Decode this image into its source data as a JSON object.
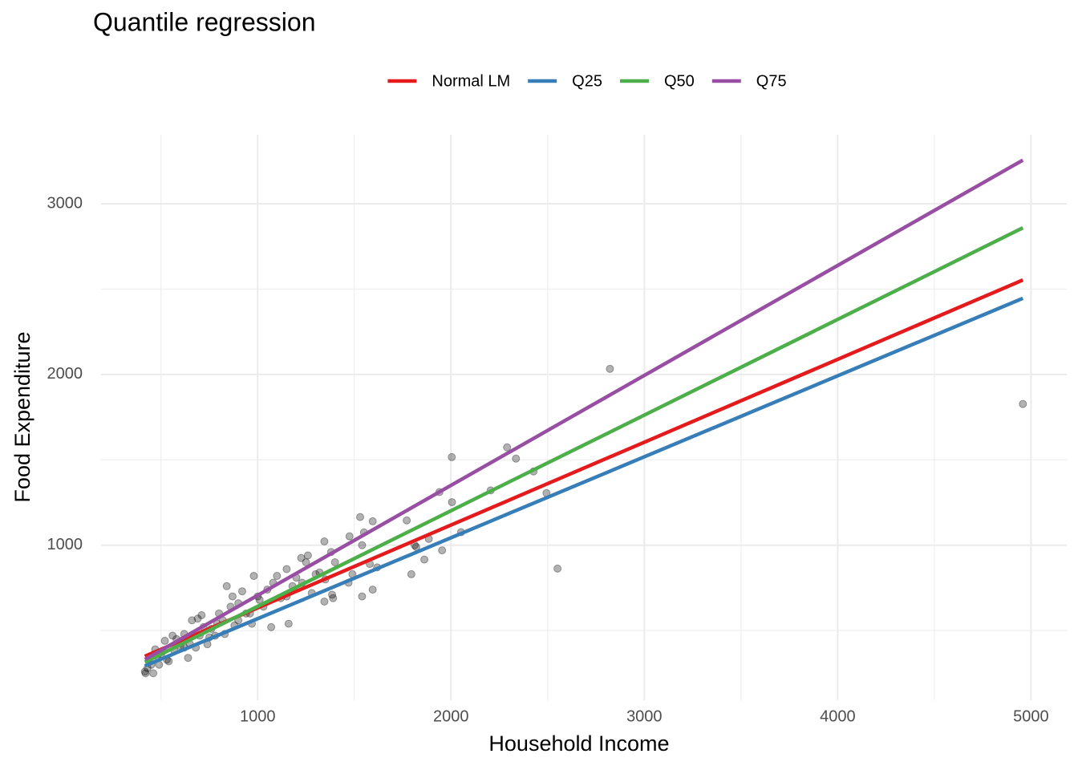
{
  "chart_data": {
    "type": "scatter",
    "title": "Quantile regression",
    "x_label": "Household Income",
    "y_label": "Food Expenditure",
    "x": [
      2822,
      4958,
      2551,
      2004,
      2290,
      2336,
      2427,
      2494,
      1940,
      2005,
      2205,
      2052,
      1954,
      1885,
      1862,
      1795,
      1812,
      1820,
      1771,
      1595,
      1530,
      1550,
      1475,
      1540,
      1595,
      1540,
      1618,
      1580,
      1490,
      1470,
      1400,
      1380,
      1345,
      1390,
      1385,
      1345,
      1350,
      1300,
      1260,
      1225,
      1250,
      1200,
      1150,
      1100,
      1160,
      1070,
      1150,
      1080,
      1050,
      980,
      1000,
      960,
      920,
      900,
      880,
      840,
      860,
      820,
      800,
      780,
      760,
      740,
      710,
      690,
      700,
      680,
      650,
      640,
      620,
      600,
      570,
      560,
      540,
      520,
      500,
      490,
      470,
      460,
      440,
      430,
      417,
      420,
      450,
      480,
      510,
      530,
      580,
      620,
      660,
      720,
      750,
      790,
      830,
      870,
      900,
      940,
      970,
      1010,
      1030,
      1120,
      1180,
      1230,
      1280,
      1320
    ],
    "values": [
      2033,
      1827,
      863,
      1516,
      1573,
      1507,
      1432,
      1305,
      1311,
      1252,
      1321,
      1076,
      970,
      1037,
      916,
      830,
      1000,
      990,
      1145,
      1140,
      1165,
      1075,
      1052,
      1000,
      740,
      700,
      870,
      890,
      830,
      780,
      900,
      960,
      1022,
      690,
      710,
      670,
      800,
      830,
      940,
      925,
      900,
      810,
      860,
      820,
      540,
      520,
      700,
      780,
      740,
      820,
      700,
      600,
      730,
      660,
      530,
      760,
      640,
      560,
      600,
      470,
      510,
      420,
      590,
      570,
      470,
      400,
      420,
      340,
      480,
      410,
      380,
      470,
      320,
      440,
      360,
      300,
      390,
      250,
      330,
      280,
      260,
      250,
      300,
      350,
      380,
      330,
      450,
      400,
      560,
      520,
      460,
      540,
      480,
      700,
      560,
      600,
      540,
      680,
      640,
      690,
      760,
      780,
      720,
      840
    ],
    "point_color": "#000000",
    "series": [
      {
        "name": "Normal LM",
        "color": "#e41a1c",
        "x": [
          416.7,
          4957.8
        ],
        "values": [
          349.7,
          2553.3
        ]
      },
      {
        "name": "Q25",
        "color": "#377eb8",
        "x": [
          416.7,
          4957.8
        ],
        "values": [
          293.0,
          2446.0
        ]
      },
      {
        "name": "Q50",
        "color": "#4daf4a",
        "x": [
          416.7,
          4957.8
        ],
        "values": [
          314.9,
          2858.8
        ]
      },
      {
        "name": "Q75",
        "color": "#984ea3",
        "x": [
          416.7,
          4957.8
        ],
        "values": [
          330.8,
          3255.2
        ]
      }
    ],
    "xlim": [
      190,
      5185
    ],
    "ylim": [
      92,
      3404
    ],
    "xticks": [
      1000,
      2000,
      3000,
      4000,
      5000
    ],
    "yticks": [
      1000,
      2000,
      3000
    ],
    "xminorticks": [
      500,
      1500,
      2500,
      3500,
      4500
    ],
    "yminorticks": [
      500,
      1500,
      2500
    ],
    "grid": true,
    "legend_position": "top"
  }
}
